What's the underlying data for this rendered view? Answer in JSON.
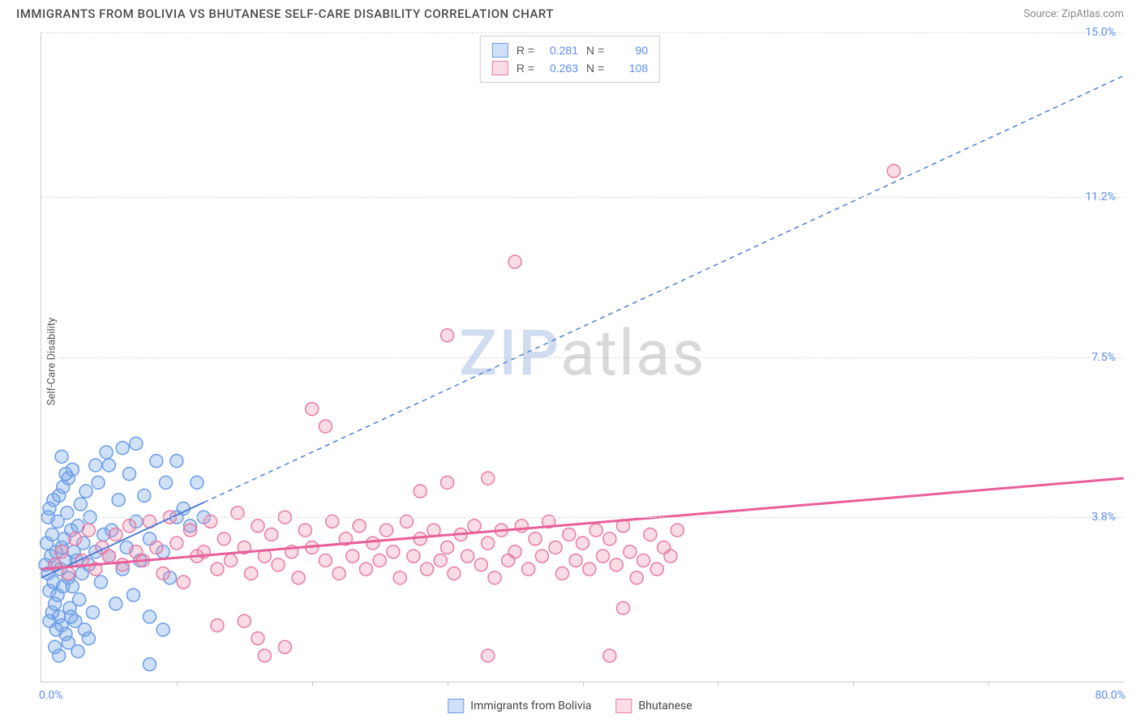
{
  "header": {
    "title": "IMMIGRANTS FROM BOLIVIA VS BHUTANESE SELF-CARE DISABILITY CORRELATION CHART",
    "source_prefix": "Source: ",
    "source_name": "ZipAtlas.com"
  },
  "chart": {
    "type": "scatter",
    "y_axis_label": "Self-Care Disability",
    "xlim": [
      0,
      80
    ],
    "ylim": [
      0,
      15
    ],
    "x_min_label": "0.0%",
    "x_max_label": "80.0%",
    "y_ticks": [
      {
        "v": 3.8,
        "label": "3.8%"
      },
      {
        "v": 7.5,
        "label": "7.5%"
      },
      {
        "v": 11.2,
        "label": "11.2%"
      },
      {
        "v": 15.0,
        "label": "15.0%"
      }
    ],
    "x_tick_positions": [
      10,
      20,
      30,
      40,
      50,
      60,
      70
    ],
    "background_color": "#ffffff",
    "grid_color": "#dddddd",
    "axis_color": "#cccccc",
    "marker_radius": 8,
    "marker_stroke_width": 1.5,
    "series": [
      {
        "id": "bolivia",
        "label": "Immigrants from Bolivia",
        "fill": "rgba(120,165,230,0.35)",
        "stroke": "#6a9de8",
        "r_value": "0.281",
        "n_value": "90",
        "trend": {
          "x1": 0,
          "y1": 2.4,
          "x2": 80,
          "y2": 14.0,
          "solid_until_x": 12,
          "color": "#4f7fd6",
          "width": 2,
          "dash": "6 5"
        },
        "points": [
          [
            0.3,
            2.7
          ],
          [
            0.4,
            3.2
          ],
          [
            0.5,
            2.5
          ],
          [
            0.5,
            3.8
          ],
          [
            0.6,
            2.1
          ],
          [
            0.6,
            4.0
          ],
          [
            0.7,
            2.9
          ],
          [
            0.8,
            1.6
          ],
          [
            0.8,
            3.4
          ],
          [
            0.9,
            2.3
          ],
          [
            0.9,
            4.2
          ],
          [
            1.0,
            1.8
          ],
          [
            1.0,
            2.7
          ],
          [
            1.1,
            3.0
          ],
          [
            1.2,
            2.0
          ],
          [
            1.2,
            3.7
          ],
          [
            1.3,
            1.5
          ],
          [
            1.3,
            4.3
          ],
          [
            1.4,
            2.6
          ],
          [
            1.5,
            3.1
          ],
          [
            1.5,
            1.3
          ],
          [
            1.6,
            4.5
          ],
          [
            1.6,
            2.2
          ],
          [
            1.7,
            3.3
          ],
          [
            1.8,
            2.8
          ],
          [
            1.8,
            1.1
          ],
          [
            1.9,
            3.9
          ],
          [
            2.0,
            2.4
          ],
          [
            2.0,
            4.7
          ],
          [
            2.1,
            1.7
          ],
          [
            2.2,
            3.5
          ],
          [
            2.3,
            2.2
          ],
          [
            2.3,
            4.9
          ],
          [
            2.4,
            3.0
          ],
          [
            2.5,
            1.4
          ],
          [
            2.6,
            2.8
          ],
          [
            2.7,
            3.6
          ],
          [
            2.8,
            1.9
          ],
          [
            2.9,
            4.1
          ],
          [
            3.0,
            2.5
          ],
          [
            3.1,
            3.2
          ],
          [
            3.2,
            1.2
          ],
          [
            3.3,
            4.4
          ],
          [
            3.5,
            2.7
          ],
          [
            3.6,
            3.8
          ],
          [
            3.8,
            1.6
          ],
          [
            4.0,
            3.0
          ],
          [
            4.2,
            4.6
          ],
          [
            4.4,
            2.3
          ],
          [
            4.6,
            3.4
          ],
          [
            4.8,
            5.3
          ],
          [
            5.0,
            2.9
          ],
          [
            5.0,
            5.0
          ],
          [
            5.2,
            3.5
          ],
          [
            5.5,
            1.8
          ],
          [
            5.7,
            4.2
          ],
          [
            6.0,
            2.6
          ],
          [
            6.0,
            5.4
          ],
          [
            6.3,
            3.1
          ],
          [
            6.5,
            4.8
          ],
          [
            6.8,
            2.0
          ],
          [
            7.0,
            3.7
          ],
          [
            7.0,
            5.5
          ],
          [
            7.3,
            2.8
          ],
          [
            7.6,
            4.3
          ],
          [
            8.0,
            3.3
          ],
          [
            8.0,
            1.5
          ],
          [
            8.5,
            5.1
          ],
          [
            9.0,
            1.2
          ],
          [
            9.0,
            3.0
          ],
          [
            9.2,
            4.6
          ],
          [
            9.5,
            2.4
          ],
          [
            10.0,
            3.8
          ],
          [
            10.0,
            5.1
          ],
          [
            10.5,
            4.0
          ],
          [
            11.0,
            3.6
          ],
          [
            11.5,
            4.6
          ],
          [
            12.0,
            3.8
          ],
          [
            8.0,
            0.4
          ],
          [
            1.0,
            0.8
          ],
          [
            1.3,
            0.6
          ],
          [
            2.0,
            0.9
          ],
          [
            2.7,
            0.7
          ],
          [
            1.5,
            5.2
          ],
          [
            3.5,
            1.0
          ],
          [
            1.8,
            4.8
          ],
          [
            0.6,
            1.4
          ],
          [
            1.1,
            1.2
          ],
          [
            2.2,
            1.5
          ],
          [
            4.0,
            5.0
          ]
        ]
      },
      {
        "id": "bhutanese",
        "label": "Bhutanese",
        "fill": "rgba(240,140,170,0.30)",
        "stroke": "#e87ba3",
        "r_value": "0.263",
        "n_value": "108",
        "trend": {
          "x1": 0,
          "y1": 2.6,
          "x2": 80,
          "y2": 4.7,
          "solid_until_x": 80,
          "color": "#e85f99",
          "width": 3,
          "dash": ""
        },
        "points": [
          [
            1.0,
            2.7
          ],
          [
            1.5,
            3.0
          ],
          [
            2.0,
            2.5
          ],
          [
            2.5,
            3.3
          ],
          [
            3.0,
            2.8
          ],
          [
            3.5,
            3.5
          ],
          [
            4.0,
            2.6
          ],
          [
            4.5,
            3.1
          ],
          [
            5.0,
            2.9
          ],
          [
            5.5,
            3.4
          ],
          [
            6.0,
            2.7
          ],
          [
            6.5,
            3.6
          ],
          [
            7.0,
            3.0
          ],
          [
            7.5,
            2.8
          ],
          [
            8.0,
            3.7
          ],
          [
            8.5,
            3.1
          ],
          [
            9.0,
            2.5
          ],
          [
            9.5,
            3.8
          ],
          [
            10.0,
            3.2
          ],
          [
            10.5,
            2.3
          ],
          [
            11.0,
            3.5
          ],
          [
            11.5,
            2.9
          ],
          [
            12.0,
            3.0
          ],
          [
            12.5,
            3.7
          ],
          [
            13.0,
            2.6
          ],
          [
            13.5,
            3.3
          ],
          [
            14.0,
            2.8
          ],
          [
            14.5,
            3.9
          ],
          [
            15.0,
            3.1
          ],
          [
            15.0,
            1.4
          ],
          [
            15.5,
            2.5
          ],
          [
            16.0,
            3.6
          ],
          [
            16.5,
            2.9
          ],
          [
            17.0,
            3.4
          ],
          [
            17.5,
            2.7
          ],
          [
            18.0,
            3.8
          ],
          [
            18.5,
            3.0
          ],
          [
            19.0,
            2.4
          ],
          [
            19.5,
            3.5
          ],
          [
            20.0,
            3.1
          ],
          [
            20.0,
            6.3
          ],
          [
            21.0,
            2.8
          ],
          [
            21.5,
            3.7
          ],
          [
            22.0,
            2.5
          ],
          [
            22.5,
            3.3
          ],
          [
            23.0,
            2.9
          ],
          [
            23.5,
            3.6
          ],
          [
            24.0,
            2.6
          ],
          [
            24.5,
            3.2
          ],
          [
            25.0,
            2.8
          ],
          [
            25.5,
            3.5
          ],
          [
            26.0,
            3.0
          ],
          [
            26.5,
            2.4
          ],
          [
            27.0,
            3.7
          ],
          [
            27.5,
            2.9
          ],
          [
            28.0,
            3.3
          ],
          [
            28.5,
            2.6
          ],
          [
            29.0,
            3.5
          ],
          [
            29.5,
            2.8
          ],
          [
            30.0,
            3.1
          ],
          [
            30.0,
            8.0
          ],
          [
            30.5,
            2.5
          ],
          [
            31.0,
            3.4
          ],
          [
            31.5,
            2.9
          ],
          [
            32.0,
            3.6
          ],
          [
            32.5,
            2.7
          ],
          [
            33.0,
            3.2
          ],
          [
            33.5,
            2.4
          ],
          [
            34.0,
            3.5
          ],
          [
            34.5,
            2.8
          ],
          [
            35.0,
            3.0
          ],
          [
            35.5,
            3.6
          ],
          [
            36.0,
            2.6
          ],
          [
            36.5,
            3.3
          ],
          [
            37.0,
            2.9
          ],
          [
            37.5,
            3.7
          ],
          [
            38.0,
            3.1
          ],
          [
            38.5,
            2.5
          ],
          [
            39.0,
            3.4
          ],
          [
            39.5,
            2.8
          ],
          [
            40.0,
            3.2
          ],
          [
            40.5,
            2.6
          ],
          [
            41.0,
            3.5
          ],
          [
            41.5,
            2.9
          ],
          [
            42.0,
            3.3
          ],
          [
            42.5,
            2.7
          ],
          [
            43.0,
            3.6
          ],
          [
            43.5,
            3.0
          ],
          [
            44.0,
            2.4
          ],
          [
            33.0,
            4.7
          ],
          [
            35.0,
            9.7
          ],
          [
            16.0,
            1.0
          ],
          [
            16.5,
            0.6
          ],
          [
            33.0,
            0.6
          ],
          [
            43.0,
            1.7
          ],
          [
            30.0,
            4.6
          ],
          [
            28.0,
            4.4
          ],
          [
            63.0,
            11.8
          ],
          [
            21.0,
            5.9
          ],
          [
            18.0,
            0.8
          ],
          [
            44.5,
            2.8
          ],
          [
            45.0,
            3.4
          ],
          [
            45.5,
            2.6
          ],
          [
            46.0,
            3.1
          ],
          [
            46.5,
            2.9
          ],
          [
            47.0,
            3.5
          ],
          [
            42.0,
            0.6
          ],
          [
            13.0,
            1.3
          ]
        ]
      }
    ]
  },
  "watermark": {
    "part1": "ZIP",
    "part2": "atlas"
  },
  "legend_top": {
    "r_label": "R =",
    "n_label": "N ="
  }
}
